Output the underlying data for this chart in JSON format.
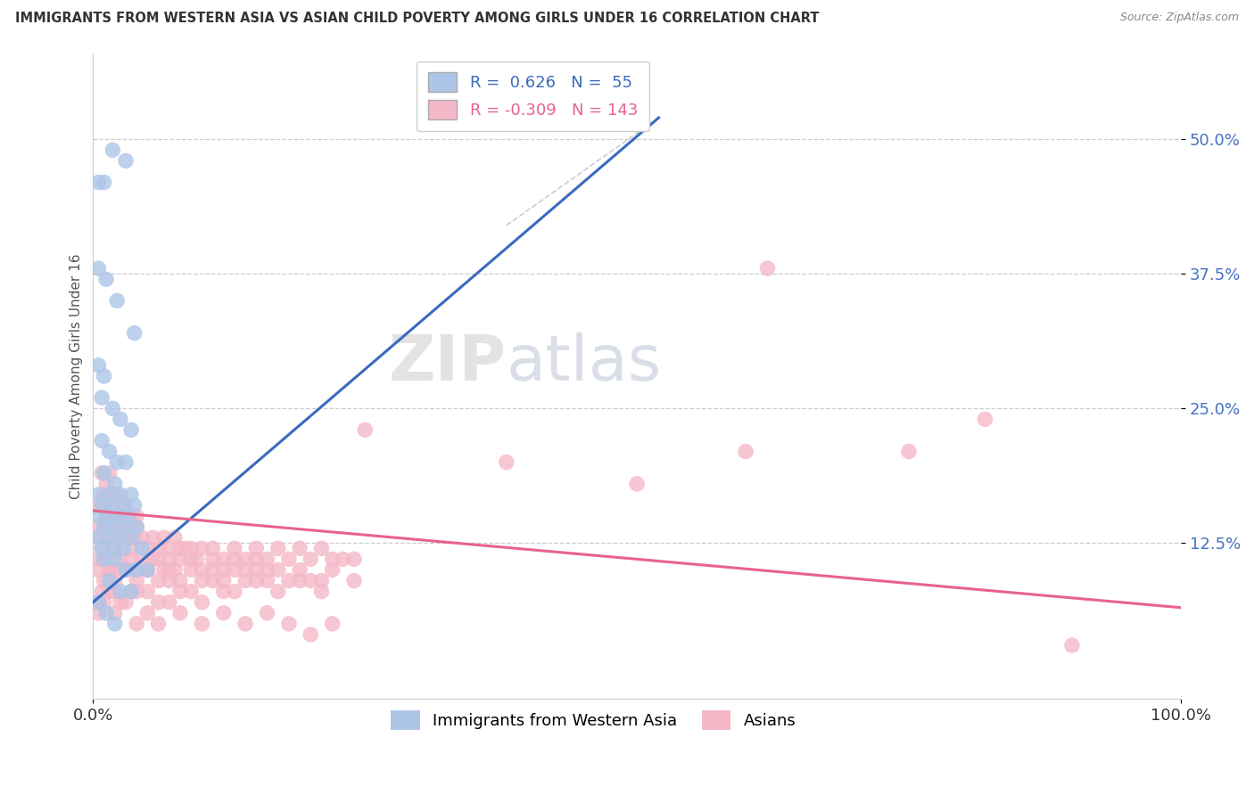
{
  "title": "IMMIGRANTS FROM WESTERN ASIA VS ASIAN CHILD POVERTY AMONG GIRLS UNDER 16 CORRELATION CHART",
  "source": "Source: ZipAtlas.com",
  "ylabel": "Child Poverty Among Girls Under 16",
  "xlim": [
    0.0,
    1.0
  ],
  "ylim": [
    -0.02,
    0.58
  ],
  "xticks": [
    0.0,
    1.0
  ],
  "xticklabels": [
    "0.0%",
    "100.0%"
  ],
  "yticks": [
    0.125,
    0.25,
    0.375,
    0.5
  ],
  "yticklabels": [
    "12.5%",
    "25.0%",
    "37.5%",
    "50.0%"
  ],
  "blue_R": 0.626,
  "blue_N": 55,
  "pink_R": -0.309,
  "pink_N": 143,
  "blue_color": "#adc6e8",
  "pink_color": "#f5b8c8",
  "blue_line_color": "#3a6abf",
  "pink_line_color": "#e8638a",
  "watermark_zip": "ZIP",
  "watermark_atlas": "atlas",
  "legend_label_blue": "Immigrants from Western Asia",
  "legend_label_pink": "Asians",
  "blue_scatter": [
    [
      0.005,
      0.46
    ],
    [
      0.01,
      0.46
    ],
    [
      0.018,
      0.49
    ],
    [
      0.03,
      0.48
    ],
    [
      0.005,
      0.38
    ],
    [
      0.012,
      0.37
    ],
    [
      0.022,
      0.35
    ],
    [
      0.038,
      0.32
    ],
    [
      0.005,
      0.29
    ],
    [
      0.01,
      0.28
    ],
    [
      0.008,
      0.26
    ],
    [
      0.018,
      0.25
    ],
    [
      0.025,
      0.24
    ],
    [
      0.035,
      0.23
    ],
    [
      0.008,
      0.22
    ],
    [
      0.015,
      0.21
    ],
    [
      0.022,
      0.2
    ],
    [
      0.03,
      0.2
    ],
    [
      0.01,
      0.19
    ],
    [
      0.02,
      0.18
    ],
    [
      0.005,
      0.17
    ],
    [
      0.015,
      0.17
    ],
    [
      0.025,
      0.17
    ],
    [
      0.035,
      0.17
    ],
    [
      0.008,
      0.16
    ],
    [
      0.018,
      0.16
    ],
    [
      0.028,
      0.16
    ],
    [
      0.038,
      0.16
    ],
    [
      0.005,
      0.15
    ],
    [
      0.012,
      0.15
    ],
    [
      0.022,
      0.15
    ],
    [
      0.032,
      0.15
    ],
    [
      0.01,
      0.14
    ],
    [
      0.02,
      0.14
    ],
    [
      0.03,
      0.14
    ],
    [
      0.04,
      0.14
    ],
    [
      0.005,
      0.13
    ],
    [
      0.015,
      0.13
    ],
    [
      0.025,
      0.13
    ],
    [
      0.035,
      0.13
    ],
    [
      0.045,
      0.12
    ],
    [
      0.008,
      0.12
    ],
    [
      0.018,
      0.12
    ],
    [
      0.028,
      0.12
    ],
    [
      0.01,
      0.11
    ],
    [
      0.02,
      0.11
    ],
    [
      0.03,
      0.1
    ],
    [
      0.04,
      0.1
    ],
    [
      0.05,
      0.1
    ],
    [
      0.015,
      0.09
    ],
    [
      0.025,
      0.08
    ],
    [
      0.035,
      0.08
    ],
    [
      0.005,
      0.07
    ],
    [
      0.012,
      0.06
    ],
    [
      0.02,
      0.05
    ]
  ],
  "pink_scatter": [
    [
      0.005,
      0.16
    ],
    [
      0.008,
      0.19
    ],
    [
      0.01,
      0.17
    ],
    [
      0.012,
      0.15
    ],
    [
      0.015,
      0.19
    ],
    [
      0.018,
      0.17
    ],
    [
      0.02,
      0.15
    ],
    [
      0.005,
      0.14
    ],
    [
      0.008,
      0.16
    ],
    [
      0.012,
      0.18
    ],
    [
      0.015,
      0.16
    ],
    [
      0.018,
      0.14
    ],
    [
      0.022,
      0.17
    ],
    [
      0.025,
      0.15
    ],
    [
      0.028,
      0.13
    ],
    [
      0.03,
      0.16
    ],
    [
      0.032,
      0.14
    ],
    [
      0.035,
      0.15
    ],
    [
      0.038,
      0.13
    ],
    [
      0.04,
      0.15
    ],
    [
      0.005,
      0.13
    ],
    [
      0.008,
      0.12
    ],
    [
      0.01,
      0.14
    ],
    [
      0.015,
      0.13
    ],
    [
      0.02,
      0.12
    ],
    [
      0.025,
      0.14
    ],
    [
      0.03,
      0.13
    ],
    [
      0.035,
      0.12
    ],
    [
      0.04,
      0.14
    ],
    [
      0.045,
      0.13
    ],
    [
      0.05,
      0.12
    ],
    [
      0.055,
      0.13
    ],
    [
      0.06,
      0.12
    ],
    [
      0.065,
      0.13
    ],
    [
      0.07,
      0.12
    ],
    [
      0.075,
      0.13
    ],
    [
      0.08,
      0.12
    ],
    [
      0.085,
      0.12
    ],
    [
      0.09,
      0.12
    ],
    [
      0.095,
      0.11
    ],
    [
      0.1,
      0.12
    ],
    [
      0.11,
      0.12
    ],
    [
      0.12,
      0.11
    ],
    [
      0.13,
      0.12
    ],
    [
      0.14,
      0.11
    ],
    [
      0.15,
      0.12
    ],
    [
      0.16,
      0.11
    ],
    [
      0.17,
      0.12
    ],
    [
      0.18,
      0.11
    ],
    [
      0.19,
      0.12
    ],
    [
      0.2,
      0.11
    ],
    [
      0.21,
      0.12
    ],
    [
      0.22,
      0.11
    ],
    [
      0.23,
      0.11
    ],
    [
      0.24,
      0.11
    ],
    [
      0.005,
      0.11
    ],
    [
      0.01,
      0.11
    ],
    [
      0.015,
      0.1
    ],
    [
      0.02,
      0.1
    ],
    [
      0.025,
      0.11
    ],
    [
      0.03,
      0.1
    ],
    [
      0.035,
      0.11
    ],
    [
      0.04,
      0.1
    ],
    [
      0.045,
      0.11
    ],
    [
      0.05,
      0.1
    ],
    [
      0.055,
      0.11
    ],
    [
      0.06,
      0.11
    ],
    [
      0.065,
      0.1
    ],
    [
      0.07,
      0.11
    ],
    [
      0.075,
      0.1
    ],
    [
      0.08,
      0.11
    ],
    [
      0.09,
      0.11
    ],
    [
      0.1,
      0.1
    ],
    [
      0.11,
      0.11
    ],
    [
      0.12,
      0.1
    ],
    [
      0.13,
      0.11
    ],
    [
      0.14,
      0.1
    ],
    [
      0.15,
      0.11
    ],
    [
      0.16,
      0.1
    ],
    [
      0.005,
      0.1
    ],
    [
      0.01,
      0.09
    ],
    [
      0.015,
      0.1
    ],
    [
      0.02,
      0.09
    ],
    [
      0.03,
      0.1
    ],
    [
      0.04,
      0.09
    ],
    [
      0.05,
      0.1
    ],
    [
      0.06,
      0.09
    ],
    [
      0.07,
      0.1
    ],
    [
      0.08,
      0.09
    ],
    [
      0.09,
      0.1
    ],
    [
      0.1,
      0.09
    ],
    [
      0.11,
      0.1
    ],
    [
      0.12,
      0.09
    ],
    [
      0.13,
      0.1
    ],
    [
      0.14,
      0.09
    ],
    [
      0.15,
      0.1
    ],
    [
      0.16,
      0.09
    ],
    [
      0.17,
      0.1
    ],
    [
      0.18,
      0.09
    ],
    [
      0.19,
      0.1
    ],
    [
      0.2,
      0.09
    ],
    [
      0.21,
      0.09
    ],
    [
      0.22,
      0.1
    ],
    [
      0.24,
      0.09
    ],
    [
      0.008,
      0.08
    ],
    [
      0.02,
      0.08
    ],
    [
      0.035,
      0.08
    ],
    [
      0.05,
      0.08
    ],
    [
      0.07,
      0.09
    ],
    [
      0.09,
      0.08
    ],
    [
      0.11,
      0.09
    ],
    [
      0.13,
      0.08
    ],
    [
      0.15,
      0.09
    ],
    [
      0.17,
      0.08
    ],
    [
      0.19,
      0.09
    ],
    [
      0.21,
      0.08
    ],
    [
      0.005,
      0.07
    ],
    [
      0.015,
      0.08
    ],
    [
      0.025,
      0.07
    ],
    [
      0.04,
      0.08
    ],
    [
      0.06,
      0.07
    ],
    [
      0.08,
      0.08
    ],
    [
      0.1,
      0.07
    ],
    [
      0.12,
      0.08
    ],
    [
      0.005,
      0.06
    ],
    [
      0.01,
      0.07
    ],
    [
      0.02,
      0.06
    ],
    [
      0.03,
      0.07
    ],
    [
      0.05,
      0.06
    ],
    [
      0.07,
      0.07
    ],
    [
      0.62,
      0.38
    ],
    [
      0.82,
      0.24
    ],
    [
      0.25,
      0.23
    ],
    [
      0.38,
      0.2
    ],
    [
      0.5,
      0.18
    ],
    [
      0.6,
      0.21
    ],
    [
      0.75,
      0.21
    ],
    [
      0.04,
      0.05
    ],
    [
      0.06,
      0.05
    ],
    [
      0.08,
      0.06
    ],
    [
      0.1,
      0.05
    ],
    [
      0.12,
      0.06
    ],
    [
      0.14,
      0.05
    ],
    [
      0.16,
      0.06
    ],
    [
      0.18,
      0.05
    ],
    [
      0.2,
      0.04
    ],
    [
      0.22,
      0.05
    ],
    [
      0.9,
      0.03
    ]
  ],
  "blue_trendline_x": [
    0.0,
    0.52
  ],
  "blue_trendline_y_start": 0.07,
  "blue_trendline_y_end": 0.52,
  "pink_trendline_x": [
    0.0,
    1.0
  ],
  "pink_trendline_y_start": 0.155,
  "pink_trendline_y_end": 0.065
}
